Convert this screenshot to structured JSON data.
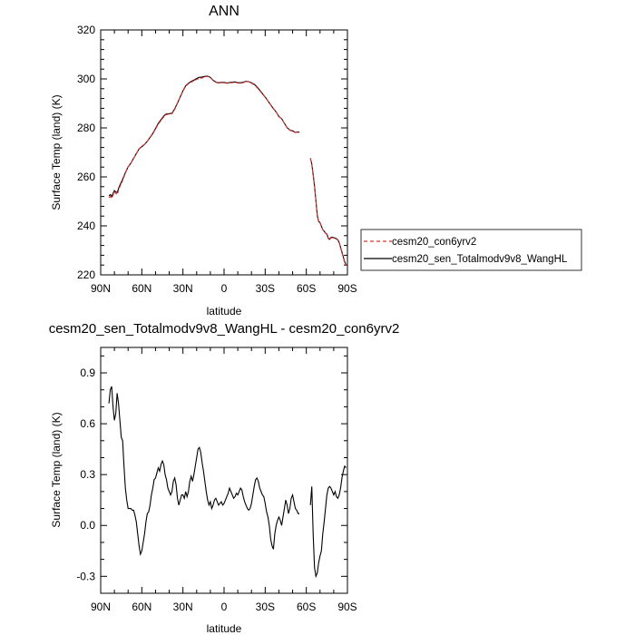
{
  "chart_data": [
    {
      "type": "line",
      "title": "ANN",
      "xlabel": "latitude",
      "ylabel": "Surface Temp (land) (K)",
      "xlim": [
        90,
        -90
      ],
      "ylim": [
        220,
        320
      ],
      "x_tick_values": [
        90,
        60,
        30,
        0,
        -30,
        -60,
        -90
      ],
      "x_tick_labels": [
        "90N",
        "60N",
        "30N",
        "0",
        "30S",
        "60S",
        "90S"
      ],
      "y_tick_values": [
        220,
        240,
        260,
        280,
        300,
        320
      ],
      "y_tick_labels": [
        "220",
        "240",
        "260",
        "280",
        "300",
        "320"
      ],
      "legend_position": "right",
      "series": [
        {
          "name": "cesm20_con6yrv2",
          "color": "#e0302a",
          "dash": "dashed",
          "segments": [
            {
              "lat": [
                84,
                83,
                82,
                81,
                80,
                79,
                78,
                77,
                76,
                74,
                72,
                70,
                68,
                66,
                64,
                62,
                60,
                58,
                56,
                54,
                52,
                50,
                48,
                46,
                44,
                42,
                40,
                38,
                36,
                34,
                32,
                30,
                28,
                26,
                24,
                22,
                20,
                18,
                16,
                14,
                12,
                10,
                8,
                6,
                4,
                2,
                0,
                -2,
                -4,
                -6,
                -8,
                -10,
                -12,
                -14,
                -16,
                -18,
                -20,
                -22,
                -24,
                -26,
                -28,
                -30,
                -32,
                -34,
                -36,
                -38,
                -40,
                -42,
                -44,
                -46,
                -48,
                -50,
                -52,
                -54,
                -55
              ],
              "values": [
                251.5,
                252.0,
                251.2,
                252.5,
                253.8,
                253.2,
                252.8,
                254.5,
                256.0,
                258.5,
                261.5,
                264.0,
                265.5,
                267.5,
                269.5,
                271.5,
                272.5,
                273.3,
                274.5,
                276.0,
                277.5,
                279.5,
                281.5,
                283.0,
                284.5,
                285.5,
                285.6,
                285.8,
                287.5,
                290.0,
                292.5,
                295.0,
                297.0,
                298.0,
                298.7,
                299.2,
                299.8,
                300.2,
                300.4,
                300.8,
                301.0,
                300.5,
                299.3,
                298.6,
                298.3,
                298.5,
                298.4,
                298.2,
                298.3,
                298.5,
                298.6,
                298.3,
                298.2,
                298.5,
                298.9,
                298.8,
                298.3,
                297.6,
                296.5,
                295.2,
                293.8,
                292.5,
                291.0,
                289.5,
                288.0,
                286.5,
                284.6,
                283.8,
                281.8,
                280.0,
                279.0,
                278.6,
                278.1,
                278.3,
                278.1
              ]
            },
            {
              "lat": [
                -63,
                -64,
                -65,
                -66,
                -67,
                -68,
                -69,
                -70,
                -71,
                -72,
                -73,
                -74,
                -75,
                -76,
                -77,
                -78,
                -79,
                -80,
                -81,
                -82,
                -83,
                -84,
                -85,
                -86,
                -87,
                -88,
                -89
              ],
              "values": [
                267.5,
                265.0,
                261.0,
                256.5,
                250.5,
                244.5,
                242.0,
                241.5,
                240.0,
                238.5,
                237.8,
                237.0,
                236.5,
                234.8,
                234.3,
                235.1,
                235.2,
                235.0,
                234.8,
                234.6,
                234.2,
                233.0,
                231.0,
                229.0,
                227.0,
                225.0,
                223.8
              ]
            }
          ]
        },
        {
          "name": "cesm20_sen_Totalmodv9v8_WangHL",
          "color": "#000000",
          "dash": "solid",
          "difference_from": "cesm20_con6yrv2",
          "note_values_from_lower_panel": true
        }
      ]
    },
    {
      "type": "line",
      "title": "cesm20_sen_Totalmodv9v8_WangHL - cesm20_con6yrv2",
      "xlabel": "latitude",
      "ylabel": "Surface Temp (land) (K)",
      "xlim": [
        90,
        -90
      ],
      "ylim": [
        -0.4,
        1.05
      ],
      "x_tick_values": [
        90,
        60,
        30,
        0,
        -30,
        -60,
        -90
      ],
      "x_tick_labels": [
        "90N",
        "60N",
        "30N",
        "0",
        "30S",
        "60S",
        "90S"
      ],
      "y_tick_values": [
        -0.3,
        0.0,
        0.3,
        0.6,
        0.9
      ],
      "y_tick_labels": [
        "-0.3",
        "0.0",
        "0.3",
        "0.6",
        "0.9"
      ],
      "series": [
        {
          "color": "#000000",
          "segments": [
            {
              "lat": [
                84,
                83,
                82,
                81,
                80,
                79,
                78,
                77,
                76,
                75,
                74,
                73,
                72,
                71,
                70,
                69,
                68,
                67,
                66,
                65,
                64,
                63,
                62,
                61,
                60,
                59,
                58,
                57,
                56,
                55,
                54,
                53,
                52,
                51,
                50,
                49,
                48,
                47,
                46,
                45,
                44,
                43,
                42,
                41,
                40,
                39,
                38,
                37,
                36,
                35,
                34,
                33,
                32,
                31,
                30,
                29,
                28,
                27,
                26,
                25,
                24,
                23,
                22,
                21,
                20,
                19,
                18,
                17,
                16,
                15,
                14,
                13,
                12,
                11,
                10,
                9,
                8,
                7,
                6,
                5,
                4,
                3,
                2,
                1,
                0,
                -1,
                -2,
                -3,
                -4,
                -5,
                -6,
                -7,
                -8,
                -9,
                -10,
                -11,
                -12,
                -13,
                -14,
                -15,
                -16,
                -17,
                -18,
                -19,
                -20,
                -21,
                -22,
                -23,
                -24,
                -25,
                -26,
                -27,
                -28,
                -29,
                -30,
                -31,
                -32,
                -33,
                -34,
                -35,
                -36,
                -37,
                -38,
                -39,
                -40,
                -41,
                -42,
                -43,
                -44,
                -45,
                -46,
                -47,
                -48,
                -49,
                -50,
                -51,
                -52,
                -53,
                -54,
                -55
              ],
              "values": [
                0.72,
                0.8,
                0.82,
                0.7,
                0.62,
                0.66,
                0.78,
                0.72,
                0.62,
                0.52,
                0.5,
                0.35,
                0.22,
                0.15,
                0.1,
                0.1,
                0.1,
                0.09,
                0.09,
                0.06,
                0.02,
                -0.05,
                -0.12,
                -0.17,
                -0.15,
                -0.1,
                -0.05,
                0.02,
                0.07,
                0.08,
                0.12,
                0.18,
                0.22,
                0.27,
                0.28,
                0.31,
                0.34,
                0.32,
                0.36,
                0.38,
                0.36,
                0.3,
                0.27,
                0.22,
                0.2,
                0.18,
                0.2,
                0.26,
                0.28,
                0.24,
                0.16,
                0.12,
                0.15,
                0.18,
                0.18,
                0.16,
                0.2,
                0.17,
                0.2,
                0.26,
                0.29,
                0.26,
                0.3,
                0.35,
                0.4,
                0.45,
                0.46,
                0.43,
                0.37,
                0.32,
                0.26,
                0.2,
                0.15,
                0.12,
                0.14,
                0.1,
                0.12,
                0.15,
                0.16,
                0.14,
                0.12,
                0.13,
                0.14,
                0.12,
                0.13,
                0.15,
                0.17,
                0.19,
                0.22,
                0.2,
                0.18,
                0.16,
                0.17,
                0.19,
                0.18,
                0.2,
                0.22,
                0.21,
                0.17,
                0.14,
                0.12,
                0.1,
                0.09,
                0.1,
                0.13,
                0.18,
                0.23,
                0.27,
                0.28,
                0.26,
                0.22,
                0.2,
                0.18,
                0.17,
                0.13,
                0.08,
                0.05,
                0.0,
                -0.08,
                -0.12,
                -0.14,
                -0.05,
                0.0,
                0.03,
                0.05,
                0.03,
                0.0,
                0.05,
                0.1,
                0.15,
                0.12,
                0.07,
                0.1,
                0.16,
                0.18,
                0.14,
                0.1,
                0.09,
                0.07,
                0.07
              ]
            },
            {
              "lat": [
                -63,
                -64,
                -65,
                -66,
                -67,
                -68,
                -69,
                -70,
                -71,
                -72,
                -73,
                -74,
                -75,
                -76,
                -77,
                -78,
                -79,
                -80,
                -81,
                -82,
                -83,
                -84,
                -85,
                -86,
                -87,
                -88,
                -89
              ],
              "values": [
                0.12,
                0.23,
                -0.05,
                -0.25,
                -0.3,
                -0.28,
                -0.22,
                -0.18,
                -0.15,
                -0.05,
                0.02,
                0.1,
                0.18,
                0.22,
                0.23,
                0.22,
                0.2,
                0.18,
                0.2,
                0.17,
                0.16,
                0.18,
                0.22,
                0.28,
                0.32,
                0.35,
                0.34
              ]
            }
          ]
        }
      ]
    }
  ]
}
